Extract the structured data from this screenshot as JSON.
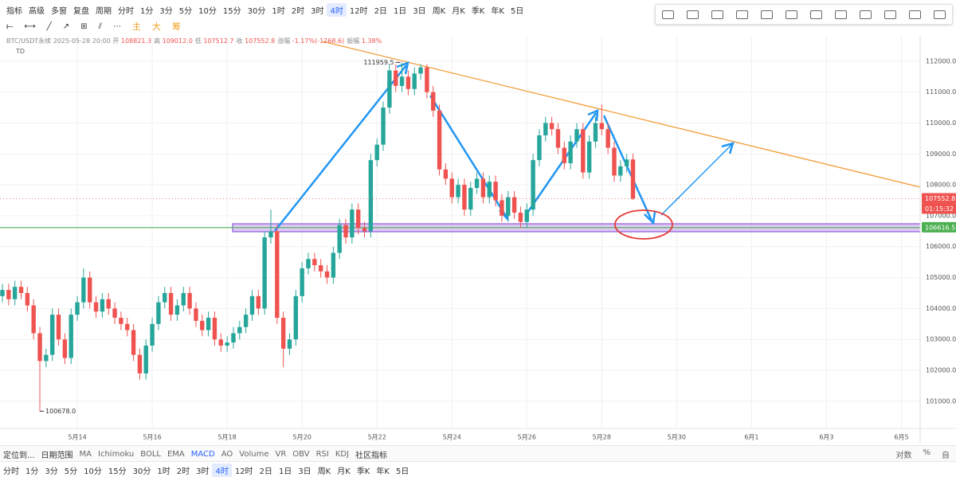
{
  "toolbar": {
    "items": [
      "指标",
      "高级",
      "多窗",
      "复盘"
    ],
    "period_label": "周期",
    "periods": [
      "分时",
      "1分",
      "3分",
      "5分",
      "10分",
      "15分",
      "30分",
      "1时",
      "2时",
      "3时",
      "4时",
      "12时",
      "2日",
      "1日",
      "3日",
      "周K",
      "月K",
      "季K",
      "年K",
      "5日"
    ],
    "active": "4时"
  },
  "draw_tools": [
    "主",
    "大",
    "筹"
  ],
  "info": {
    "symbol": "BTC/USDT永续",
    "time": "2025-05-28 20:00",
    "fields": [
      {
        "k": "开",
        "v": "108821.3"
      },
      {
        "k": "高",
        "v": "109012.0"
      },
      {
        "k": "低",
        "v": "107512.7"
      },
      {
        "k": "收",
        "v": "107552.8"
      },
      {
        "k": "涨幅",
        "v": "-1.17%(-1268.6)"
      },
      {
        "k": "振幅",
        "v": "1.38%"
      }
    ]
  },
  "indicator_tag": "TD",
  "chart_data": {
    "type": "candlestick",
    "up_color": "#26a69a",
    "down_color": "#ef5350",
    "grid": true,
    "categories": [
      null,
      null,
      null,
      null,
      null,
      null,
      null,
      null,
      null,
      null,
      null,
      null,
      "5月14",
      null,
      null,
      null,
      null,
      null,
      null,
      null,
      null,
      null,
      null,
      null,
      "5月16",
      null,
      null,
      null,
      null,
      null,
      null,
      null,
      null,
      null,
      null,
      null,
      "5月18",
      null,
      null,
      null,
      null,
      null,
      null,
      null,
      null,
      null,
      null,
      null,
      "5月20",
      null,
      null,
      null,
      null,
      null,
      null,
      null,
      null,
      null,
      null,
      null,
      "5月22",
      null,
      null,
      null,
      null,
      null,
      null,
      null,
      null,
      null,
      null,
      null,
      "5月24",
      null,
      null,
      null,
      null,
      null,
      null,
      null,
      null,
      null,
      null,
      null,
      "5月26",
      null,
      null,
      null,
      null,
      null,
      null,
      null,
      null,
      null,
      null,
      null,
      "5月28",
      null,
      null,
      null,
      null,
      null,
      null,
      null,
      null,
      null,
      null,
      null,
      "5月30",
      null,
      null,
      null,
      null,
      null,
      null,
      null,
      null,
      null,
      null,
      null,
      "6月1",
      null,
      null,
      null,
      null,
      null,
      null,
      null,
      null,
      null,
      null,
      null,
      "6月3",
      null,
      null,
      null,
      null,
      null,
      null,
      null,
      null,
      null,
      null,
      null,
      "6月5",
      null,
      null,
      null
    ],
    "open": [
      104400,
      104600,
      104300,
      104700,
      104500,
      104100,
      103200,
      102300,
      102500,
      103800,
      103000,
      102400,
      103800,
      104200,
      105000,
      104200,
      103900,
      104300,
      104000,
      103700,
      103500,
      103300,
      102500,
      101900,
      102800,
      103500,
      104200,
      104500,
      103800,
      104100,
      104500,
      104000,
      103600,
      103300,
      103700,
      103000,
      102800,
      102900,
      103200,
      103400,
      103800,
      104400,
      104000,
      106300,
      106500,
      103700,
      102700,
      103000,
      104400,
      105300,
      105600,
      105400,
      105200,
      105000,
      105800,
      106700,
      106300,
      107200,
      106600,
      106500,
      108800,
      109300,
      110500,
      111700,
      111200,
      111500,
      111100,
      111600,
      111800,
      111000,
      110400,
      108500,
      108200,
      107600,
      108000,
      107200,
      107900,
      108200,
      107600,
      108100,
      107500,
      107000,
      107600,
      107100,
      106800,
      107200,
      108800,
      109600,
      110000,
      109800,
      109200,
      108700,
      109400,
      109800,
      108400,
      109400,
      110000,
      109800,
      109200,
      108300,
      108600,
      108821.3,
      null,
      null,
      null,
      null,
      null,
      null,
      null,
      null,
      null,
      null,
      null,
      null,
      null,
      null,
      null,
      null,
      null,
      null,
      null,
      null,
      null,
      null,
      null,
      null,
      null,
      null,
      null,
      null,
      null,
      null,
      null,
      null,
      null,
      null,
      null,
      null,
      null,
      null,
      null,
      null,
      null,
      null,
      null,
      null,
      null,
      null
    ],
    "high": [
      104800,
      104800,
      104900,
      104900,
      104700,
      104300,
      103400,
      102700,
      104000,
      104000,
      103200,
      104000,
      104400,
      105300,
      105200,
      104400,
      104500,
      104500,
      104200,
      103900,
      103700,
      103500,
      102700,
      103000,
      103700,
      104400,
      104700,
      104700,
      104300,
      104700,
      104700,
      104200,
      103800,
      103900,
      103900,
      103200,
      103100,
      103400,
      103600,
      104000,
      104600,
      104600,
      106500,
      107200,
      106700,
      103900,
      103200,
      104600,
      105500,
      105800,
      105800,
      105600,
      105400,
      106000,
      106900,
      106900,
      107400,
      107400,
      106800,
      109000,
      109500,
      110700,
      111900,
      111900,
      111959.5,
      111700,
      111800,
      111900,
      111900,
      111200,
      110600,
      108700,
      108400,
      108200,
      108200,
      108100,
      108400,
      108400,
      108300,
      108300,
      107700,
      107800,
      107800,
      107300,
      107400,
      109000,
      109800,
      110200,
      110200,
      110000,
      109400,
      109600,
      110000,
      110000,
      109600,
      110200,
      110600,
      110000,
      109400,
      108800,
      109000,
      109012.0,
      null,
      null,
      null,
      null,
      null,
      null,
      null,
      null,
      null,
      null,
      null,
      null,
      null,
      null,
      null,
      null,
      null,
      null,
      null,
      null,
      null,
      null,
      null,
      null,
      null,
      null,
      null,
      null,
      null,
      null,
      null,
      null,
      null,
      null,
      null,
      null,
      null,
      null,
      null,
      null,
      null,
      null,
      null,
      null,
      null,
      null
    ],
    "low": [
      104200,
      104100,
      104100,
      104300,
      103900,
      103000,
      100678.0,
      102100,
      102300,
      102800,
      102200,
      102200,
      103600,
      104000,
      104000,
      103700,
      103700,
      103800,
      103500,
      103300,
      103100,
      102300,
      101700,
      101700,
      102600,
      103300,
      104000,
      103600,
      103600,
      103900,
      103800,
      103400,
      103100,
      103100,
      102800,
      102600,
      102600,
      102700,
      103000,
      103200,
      103600,
      103800,
      103800,
      106100,
      103500,
      102100,
      102500,
      102800,
      104200,
      105100,
      105200,
      105000,
      104800,
      104800,
      105600,
      106100,
      106100,
      106400,
      106300,
      106300,
      108600,
      109100,
      110300,
      111000,
      111000,
      110900,
      110900,
      111400,
      110800,
      110200,
      108300,
      108000,
      107400,
      107400,
      107000,
      107000,
      107700,
      107400,
      107400,
      107300,
      106800,
      106800,
      106900,
      106600,
      106600,
      107000,
      108600,
      109400,
      109600,
      109000,
      108500,
      108500,
      109200,
      108200,
      108200,
      109200,
      109600,
      109000,
      108100,
      108100,
      108400,
      107512.7,
      null,
      null,
      null,
      null,
      null,
      null,
      null,
      null,
      null,
      null,
      null,
      null,
      null,
      null,
      null,
      null,
      null,
      null,
      null,
      null,
      null,
      null,
      null,
      null,
      null,
      null,
      null,
      null,
      null,
      null,
      null,
      null,
      null,
      null,
      null,
      null,
      null,
      null,
      null,
      null,
      null,
      null,
      null,
      null,
      null,
      null
    ],
    "close": [
      104600,
      104300,
      104700,
      104500,
      104100,
      103200,
      102300,
      102500,
      103800,
      103000,
      102400,
      103800,
      104200,
      105000,
      104200,
      103900,
      104300,
      104000,
      103700,
      103500,
      103300,
      102500,
      101900,
      102800,
      103500,
      104200,
      104500,
      103800,
      104100,
      104500,
      104000,
      103600,
      103300,
      103700,
      103000,
      102800,
      102900,
      103200,
      103400,
      103800,
      104400,
      104000,
      106300,
      106500,
      103700,
      102700,
      103000,
      104400,
      105300,
      105600,
      105400,
      105200,
      105000,
      105800,
      106700,
      106300,
      107200,
      106600,
      106500,
      108800,
      109300,
      110500,
      111700,
      111200,
      111500,
      111100,
      111600,
      111800,
      111000,
      110400,
      108500,
      108200,
      107600,
      108000,
      107200,
      107900,
      108200,
      107600,
      108100,
      107500,
      107000,
      107600,
      107100,
      106800,
      107200,
      108800,
      109600,
      110000,
      109800,
      109200,
      108700,
      109400,
      109800,
      108400,
      109400,
      110000,
      109800,
      109200,
      108300,
      108600,
      108821.3,
      107552.8,
      null,
      null,
      null,
      null,
      null,
      null,
      null,
      null,
      null,
      null,
      null,
      null,
      null,
      null,
      null,
      null,
      null,
      null,
      null,
      null,
      null,
      null,
      null,
      null,
      null,
      null,
      null,
      null,
      null,
      null,
      null,
      null,
      null,
      null,
      null,
      null,
      null,
      null,
      null,
      null,
      null,
      null,
      null,
      null,
      null,
      null
    ],
    "ylim": [
      100120,
      112820
    ],
    "yticks": [
      {
        "value": 101000,
        "label": "101000.0"
      },
      {
        "value": 102000,
        "label": "102000.0"
      },
      {
        "value": 103000,
        "label": "103000.0"
      },
      {
        "value": 104000,
        "label": "104000.0"
      },
      {
        "value": 105000,
        "label": "105000.0"
      },
      {
        "value": 106000,
        "label": "106000.0"
      },
      {
        "value": 107000,
        "label": "107000.0"
      },
      {
        "value": 108000,
        "label": "108000.0"
      },
      {
        "value": 109000,
        "label": "109000.0"
      },
      {
        "value": 110000,
        "label": "110000.0"
      },
      {
        "value": 111000,
        "label": "111000.0"
      },
      {
        "value": 112000,
        "label": "112000.0"
      }
    ],
    "annotations": [
      {
        "text": "111959.5",
        "value": 111959.5
      },
      {
        "text": "100678.0",
        "value": 100678.0
      }
    ],
    "last_price": 107552.8,
    "countdown": "01:15:32",
    "level": {
      "value": 106616.5,
      "color": "#4caf50"
    }
  },
  "bottom": {
    "locate": "定位到...",
    "range": "日期范围",
    "indicators": [
      "MA",
      "Ichimoku",
      "BOLL",
      "EMA",
      "MACD",
      "AO",
      "Volume",
      "VR",
      "OBV",
      "RSI",
      "KDJ"
    ],
    "community": "社区指标",
    "scale": [
      "对数",
      "%",
      "自"
    ],
    "periods": [
      "分时",
      "1分",
      "3分",
      "5分",
      "10分",
      "15分",
      "30分",
      "1时",
      "2时",
      "3时",
      "4时",
      "12时",
      "2日",
      "1日",
      "3日",
      "周K",
      "月K",
      "季K",
      "年K",
      "5日"
    ]
  }
}
